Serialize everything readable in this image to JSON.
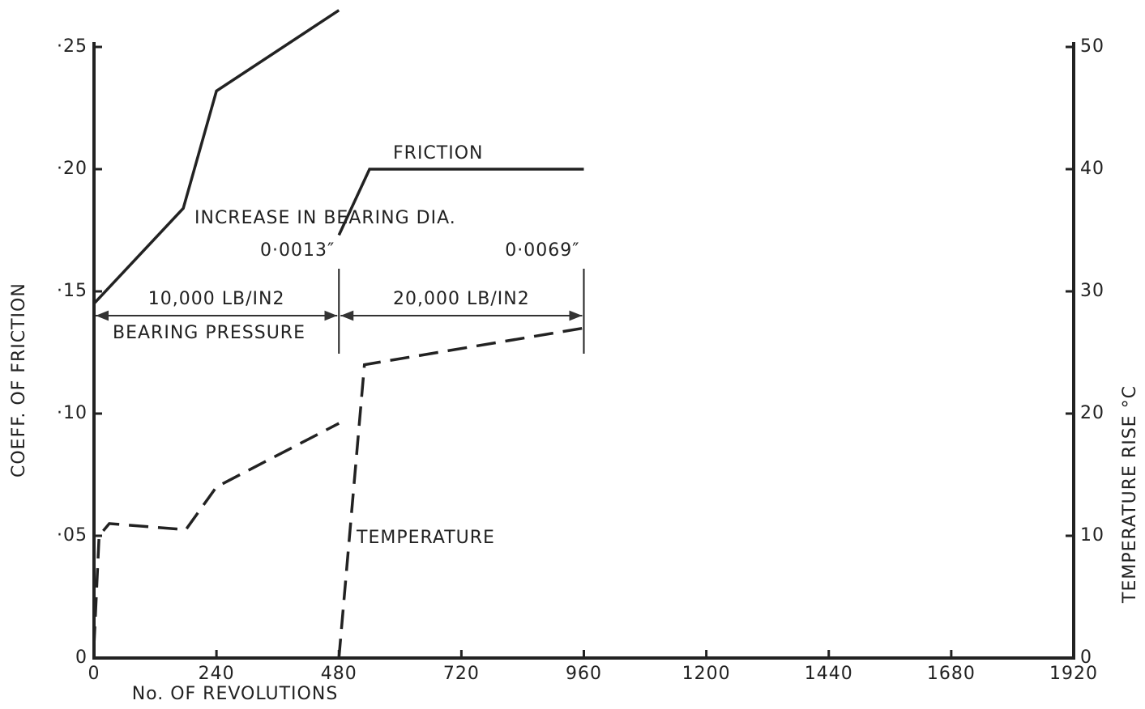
{
  "chart_data": {
    "type": "line",
    "x_label": "No. OF REVOLUTIONS",
    "y_label": "COEFF. OF FRICTION",
    "y2_label": "TEMPERATURE RISE °C",
    "xlim": [
      0,
      1920
    ],
    "xticks": [
      0,
      240,
      480,
      720,
      960,
      1200,
      1440,
      1680,
      1920
    ],
    "ylim": [
      0,
      0.25
    ],
    "yticks": [
      0,
      {
        "value": 0.05,
        "label": "·05"
      },
      {
        "value": 0.1,
        "label": "·10"
      },
      {
        "value": 0.15,
        "label": "·15"
      },
      {
        "value": 0.2,
        "label": "·20"
      },
      {
        "value": 0.25,
        "label": "·25"
      }
    ],
    "y2lim": [
      0,
      50
    ],
    "y2ticks": [
      0,
      10,
      20,
      30,
      40,
      50
    ],
    "series": [
      {
        "name": "FRICTION",
        "color": "#222222",
        "style": "solid",
        "x": [
          0,
          175,
          240,
          480,
          null,
          480,
          540,
          960
        ],
        "values": [
          0.145,
          0.184,
          0.232,
          0.265,
          null,
          0.173,
          0.2,
          0.2
        ]
      },
      {
        "name": "TEMPERATURE",
        "color": "#222222",
        "style": "dashed",
        "axis": "y2",
        "x": [
          0,
          10,
          30,
          180,
          240,
          480,
          null,
          480,
          530,
          960
        ],
        "values": [
          1,
          10,
          11,
          10.5,
          14,
          19.2,
          null,
          0,
          24,
          27
        ]
      }
    ],
    "increase_label": "INCREASE IN BEARING DIA.",
    "diameter_increase": [
      {
        "x": 480,
        "label": "0·0013″"
      },
      {
        "x": 960,
        "label": "0·0069″"
      }
    ],
    "pressure_label": "BEARING PRESSURE",
    "pressure_ranges": [
      {
        "from": 0,
        "to": 480,
        "label": "10,000 LB/IN2"
      },
      {
        "from": 480,
        "to": 960,
        "label": "20,000 LB/IN2"
      }
    ]
  }
}
